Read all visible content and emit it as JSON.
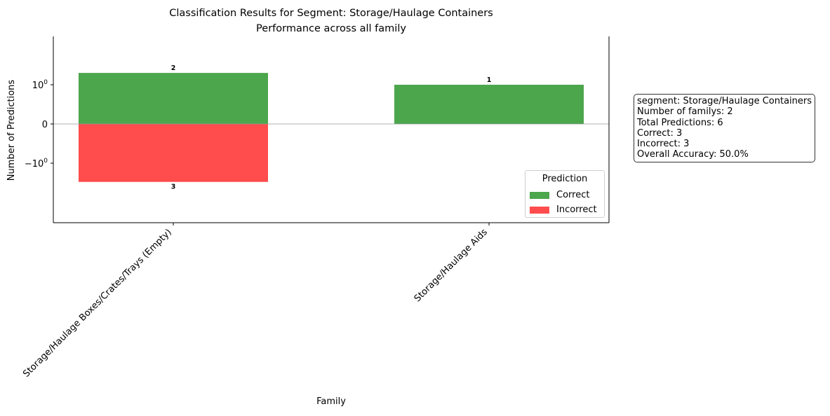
{
  "chart_data": {
    "type": "bar",
    "title": "Classification Results for Segment: Storage/Haulage Containers",
    "subtitle": "Performance across all family",
    "xlabel": "Family",
    "ylabel": "Number of Predictions",
    "yscale": "symlog",
    "categories": [
      "Storage/Haulage Boxes/Crates/Trays (Empty)",
      "Storage/Haulage Aids"
    ],
    "series": [
      {
        "name": "Correct",
        "values": [
          2,
          1
        ],
        "color": "#4ca64c"
      },
      {
        "name": "Incorrect",
        "values": [
          -3,
          0
        ],
        "color": "#ff4c4c"
      }
    ],
    "data_labels": {
      "correct": [
        "2",
        "1"
      ],
      "incorrect": [
        "3",
        ""
      ]
    },
    "yticks": [
      {
        "value": 1,
        "label_base": "10",
        "label_exp": "0",
        "sign": ""
      },
      {
        "value": 0,
        "label_base": "0",
        "label_exp": "",
        "sign": ""
      },
      {
        "value": -1,
        "label_base": "10",
        "label_exp": "0",
        "sign": "−"
      }
    ],
    "legend": {
      "title": "Prediction",
      "placement": "lower-right"
    },
    "grid": false
  },
  "info_box": {
    "lines": [
      "segment: Storage/Haulage Containers",
      "Number of familys: 2",
      "Total Predictions: 6",
      "Correct: 3",
      "Incorrect: 3",
      "Overall Accuracy: 50.0%"
    ]
  }
}
